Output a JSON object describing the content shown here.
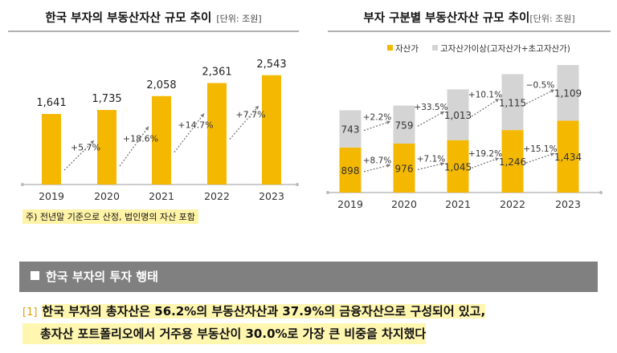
{
  "left_panel": {
    "title": "한국 부자의 부동산자산 규모 추이",
    "unit": "[단위: 조원]",
    "footnote": "주) 전년말 기준으로 산정, 법인명의 자산 포함"
  },
  "right_panel": {
    "title": "부자 구분별 부동산자산 규모 추이",
    "subtitle": "[단위: 조원]"
  },
  "section": {
    "title": "한국 부자의 투자 행태"
  },
  "body": {
    "number": "[1]",
    "line1": "한국 부자의 총자산은 56.2%의 부동산자산과 37.9%의 금융자산으로 구성되어 있고,",
    "line2": "총자산 포트폴리오에서 거주용 부동산이 30.0%로 가장 큰 비중을 차지했다"
  },
  "colors": {
    "accent": "#f5b800",
    "gray_bar": "#d4d4d4",
    "arrow": "#7a7a7a"
  },
  "chart_data": [
    {
      "type": "bar",
      "categories": [
        "2019",
        "2020",
        "2021",
        "2022",
        "2023"
      ],
      "series": [
        {
          "values": [
            1641,
            1735,
            2058,
            2361,
            2543
          ],
          "labels": [
            "1,641",
            "1,735",
            "2,058",
            "2,361",
            "2,543"
          ]
        }
      ],
      "growth_labels": [
        "+5.7%",
        "+18.6%",
        "+14.7%",
        "+7.7%"
      ],
      "ylim": [
        0,
        2800
      ]
    },
    {
      "type": "bar",
      "stacked": true,
      "categories": [
        "2019",
        "2020",
        "2021",
        "2022",
        "2023"
      ],
      "series": [
        {
          "name": "자산가",
          "values": [
            898,
            976,
            1045,
            1246,
            1434
          ],
          "labels": [
            "898",
            "976",
            "1,045",
            "1,246",
            "1,434"
          ],
          "growth_labels": [
            "+8.7%",
            "+7.1%",
            "+19.2%",
            "+15.1%"
          ]
        },
        {
          "name": "고자산가이상(고자산가+초고자산가)",
          "values": [
            743,
            759,
            1013,
            1115,
            1109
          ],
          "labels": [
            "743",
            "759",
            "1,013",
            "1,115",
            "1,109"
          ],
          "growth_labels": [
            "+2.2%",
            "+33.5%",
            "+10.1%",
            "−0.5%"
          ]
        }
      ],
      "ylim": [
        0,
        2800
      ]
    }
  ]
}
